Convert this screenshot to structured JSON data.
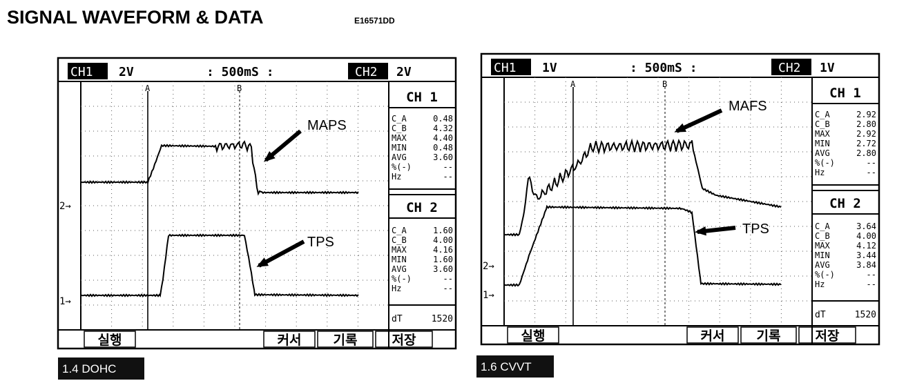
{
  "header": {
    "title": "SIGNAL WAVEFORM & DATA",
    "code": "E16571DD"
  },
  "panels": [
    {
      "header": {
        "ch1": "CH1",
        "ch1_scale": "2V",
        "timebase": ": 500mS :",
        "ch2": "CH2",
        "ch2_scale": "2V"
      },
      "cursors": [
        "A",
        "B"
      ],
      "markers": [
        "2→",
        "1→"
      ],
      "annotations": [
        "MAPS",
        "TPS"
      ],
      "ch1": {
        "title": "CH 1",
        "readings": [
          [
            "C_A",
            "0.48"
          ],
          [
            "C_B",
            "4.32"
          ],
          [
            "MAX",
            "4.40"
          ],
          [
            "MIN",
            "0.48"
          ],
          [
            "AVG",
            "3.60"
          ],
          [
            "%(-)",
            "--"
          ],
          [
            "Hz",
            "--"
          ]
        ]
      },
      "ch2": {
        "title": "CH 2",
        "readings": [
          [
            "C_A",
            "1.60"
          ],
          [
            "C_B",
            "4.00"
          ],
          [
            "MAX",
            "4.16"
          ],
          [
            "MIN",
            "1.60"
          ],
          [
            "AVG",
            "3.60"
          ],
          [
            "%(-)",
            "--"
          ],
          [
            "Hz",
            "--"
          ]
        ]
      },
      "dt": {
        "label": "dT",
        "value": "1520"
      },
      "buttons": [
        "실행",
        "커서",
        "기록",
        "저장"
      ],
      "caption": "1.4 DOHC"
    },
    {
      "header": {
        "ch1": "CH1",
        "ch1_scale": "1V",
        "timebase": ": 500mS :",
        "ch2": "CH2",
        "ch2_scale": "1V"
      },
      "cursors": [
        "A",
        "B"
      ],
      "markers": [
        "2→",
        "1→"
      ],
      "annotations": [
        "MAFS",
        "TPS"
      ],
      "ch1": {
        "title": "CH 1",
        "readings": [
          [
            "C_A",
            "2.92"
          ],
          [
            "C_B",
            "2.80"
          ],
          [
            "MAX",
            "2.92"
          ],
          [
            "MIN",
            "2.72"
          ],
          [
            "AVG",
            "2.80"
          ],
          [
            "%(-)",
            "--"
          ],
          [
            "Hz",
            "--"
          ]
        ]
      },
      "ch2": {
        "title": "CH 2",
        "readings": [
          [
            "C_A",
            "3.64"
          ],
          [
            "C_B",
            "4.00"
          ],
          [
            "MAX",
            "4.12"
          ],
          [
            "MIN",
            "3.44"
          ],
          [
            "AVG",
            "3.84"
          ],
          [
            "%(-)",
            "--"
          ],
          [
            "Hz",
            "--"
          ]
        ]
      },
      "dt": {
        "label": "dT",
        "value": "1520"
      },
      "buttons": [
        "실행",
        "커서",
        "기록",
        "저장"
      ],
      "caption": "1.6 CVVT"
    }
  ]
}
